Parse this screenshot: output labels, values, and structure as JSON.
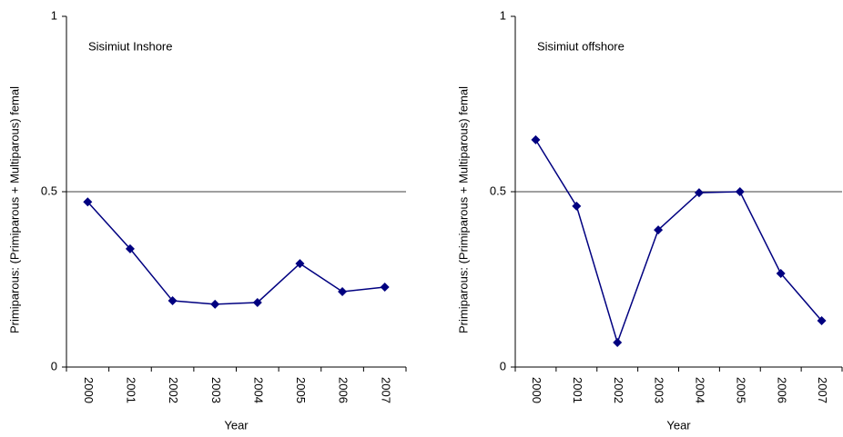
{
  "chart_data": [
    {
      "type": "line",
      "annotation": "Sisimiut Inshore",
      "ylabel": "Primiparous: (Primiparous + Multiparous) femal",
      "xlabel": "Year",
      "categories": [
        "2000",
        "2001",
        "2002",
        "2003",
        "2004",
        "2005",
        "2006",
        "2007"
      ],
      "values": [
        0.471,
        0.337,
        0.189,
        0.179,
        0.184,
        0.295,
        0.215,
        0.228
      ],
      "color": "#000080",
      "ylim": [
        0,
        1
      ],
      "yticks": [
        0,
        0.5,
        1
      ],
      "grid": true
    },
    {
      "type": "line",
      "annotation": "Sisimiut offshore",
      "ylabel": "Primiparous: (Primiparous + Multiparous) femal",
      "xlabel": "Year",
      "categories": [
        "2000",
        "2001",
        "2002",
        "2003",
        "2004",
        "2005",
        "2006",
        "2007"
      ],
      "values": [
        0.648,
        0.459,
        0.07,
        0.391,
        0.497,
        0.5,
        0.267,
        0.132
      ],
      "color": "#000080",
      "ylim": [
        0,
        1
      ],
      "yticks": [
        0,
        0.5,
        1
      ],
      "grid": true
    }
  ]
}
